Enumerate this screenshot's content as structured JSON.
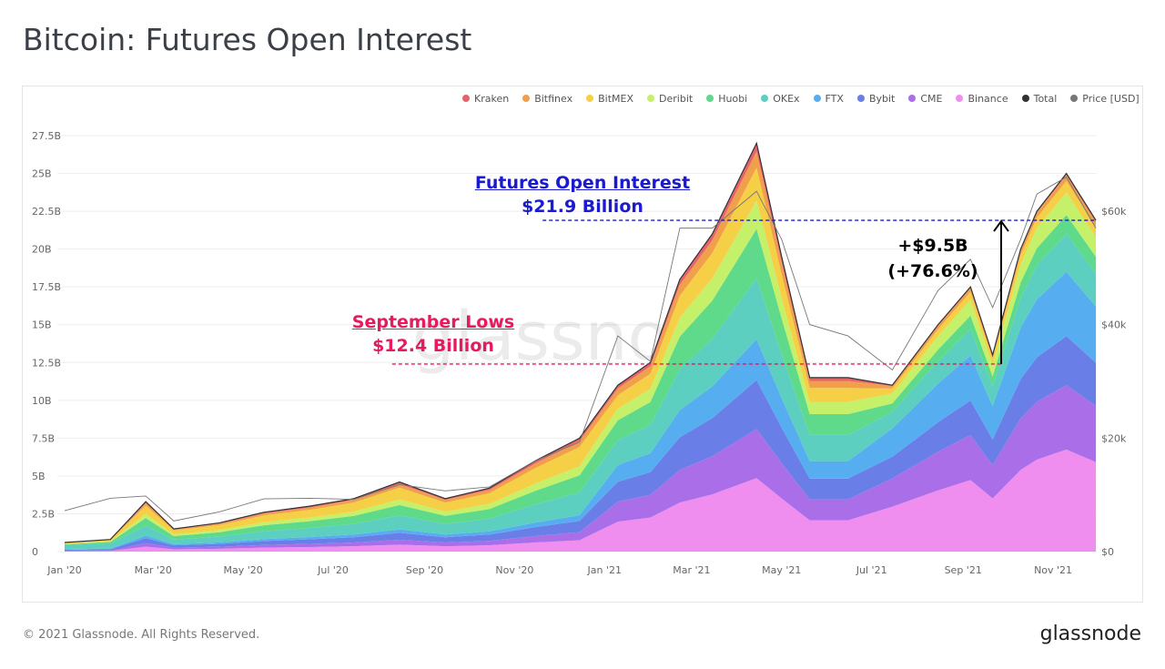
{
  "header": {
    "title": "Bitcoin: Futures Open Interest"
  },
  "footer": {
    "copyright": "© 2021 Glassnode. All Rights Reserved.",
    "logo": "glassnode",
    "watermark": "glassnode"
  },
  "annotations": {
    "current_title": "Futures Open Interest",
    "current_value": "$21.9 Billion",
    "current_color": "#1a1ad0",
    "lows_title": "September Lows",
    "lows_value": "$12.4 Billion",
    "lows_color": "#e8195e",
    "change_abs": "+$9.5B",
    "change_pct": "(+76.6%)"
  },
  "chart_data": {
    "type": "area",
    "stacked": true,
    "grid": true,
    "legend_position": "top-right",
    "y_ticks": [
      "0",
      "2.5B",
      "5B",
      "7.5B",
      "10B",
      "12.5B",
      "15B",
      "17.5B",
      "20B",
      "22.5B",
      "25B",
      "27.5B"
    ],
    "ylim": [
      0,
      27.5
    ],
    "y2_ticks": [
      "$0",
      "$20k",
      "$40k",
      "$60k"
    ],
    "y2lim": [
      0,
      73300
    ],
    "x_ticks": [
      "Jan '20",
      "Mar '20",
      "May '20",
      "Jul '20",
      "Sep '20",
      "Nov '20",
      "Jan '21",
      "Mar '21",
      "May '21",
      "Jul '21",
      "Sep '21",
      "Nov '21"
    ],
    "x_tick_dates": [
      "2020-01-01",
      "2020-03-01",
      "2020-05-01",
      "2020-07-01",
      "2020-09-01",
      "2020-11-01",
      "2021-01-01",
      "2021-03-01",
      "2021-05-01",
      "2021-07-01",
      "2021-09-01",
      "2021-11-01"
    ],
    "x": [
      "2020-01-01",
      "2020-02-01",
      "2020-02-25",
      "2020-03-15",
      "2020-04-15",
      "2020-05-15",
      "2020-06-15",
      "2020-07-15",
      "2020-08-15",
      "2020-09-15",
      "2020-10-15",
      "2020-11-15",
      "2020-12-15",
      "2021-01-10",
      "2021-02-01",
      "2021-02-21",
      "2021-03-15",
      "2021-04-14",
      "2021-05-01",
      "2021-05-20",
      "2021-06-15",
      "2021-07-15",
      "2021-08-15",
      "2021-09-06",
      "2021-09-21",
      "2021-10-10",
      "2021-10-21",
      "2021-11-10",
      "2021-11-30"
    ],
    "series": [
      {
        "name": "Binance",
        "color": "#f08ef0",
        "values": [
          0.03,
          0.04,
          0.33,
          0.15,
          0.19,
          0.26,
          0.3,
          0.35,
          0.46,
          0.35,
          0.42,
          0.6,
          0.75,
          1.98,
          2.25,
          3.24,
          3.78,
          4.86,
          3.51,
          2.07,
          2.07,
          2.97,
          4.05,
          4.73,
          3.51,
          5.4,
          6.08,
          6.75,
          5.91
        ]
      },
      {
        "name": "CME",
        "color": "#a96ee8",
        "values": [
          0.03,
          0.04,
          0.23,
          0.11,
          0.13,
          0.18,
          0.21,
          0.25,
          0.32,
          0.25,
          0.29,
          0.42,
          0.53,
          1.32,
          1.5,
          2.16,
          2.52,
          3.24,
          2.34,
          1.38,
          1.38,
          1.87,
          2.55,
          2.98,
          2.21,
          3.4,
          3.83,
          4.25,
          3.72
        ]
      },
      {
        "name": "Bybit",
        "color": "#6a7ee8",
        "values": [
          0.06,
          0.08,
          0.33,
          0.15,
          0.19,
          0.26,
          0.3,
          0.35,
          0.46,
          0.35,
          0.42,
          0.6,
          0.75,
          1.32,
          1.5,
          2.16,
          2.52,
          3.24,
          2.34,
          1.38,
          1.38,
          1.43,
          1.95,
          2.28,
          1.69,
          2.6,
          2.93,
          3.25,
          2.85
        ]
      },
      {
        "name": "FTX",
        "color": "#56aef0",
        "values": [
          0.03,
          0.04,
          0.17,
          0.08,
          0.1,
          0.13,
          0.15,
          0.18,
          0.23,
          0.18,
          0.21,
          0.3,
          0.38,
          1.1,
          1.25,
          1.8,
          2.1,
          2.7,
          1.95,
          1.15,
          1.15,
          1.87,
          2.55,
          2.98,
          2.21,
          3.4,
          3.83,
          4.25,
          3.72
        ]
      },
      {
        "name": "OKEx",
        "color": "#5ccfc0",
        "values": [
          0.27,
          0.36,
          0.66,
          0.3,
          0.38,
          0.52,
          0.6,
          0.7,
          0.92,
          0.7,
          0.84,
          1.2,
          1.5,
          1.65,
          1.88,
          2.7,
          3.15,
          4.05,
          2.93,
          1.73,
          1.73,
          1.1,
          1.5,
          1.75,
          1.3,
          2.0,
          2.25,
          2.5,
          2.19
        ]
      },
      {
        "name": "Huobi",
        "color": "#5fd98a",
        "values": [
          0.06,
          0.08,
          0.5,
          0.23,
          0.29,
          0.39,
          0.45,
          0.53,
          0.69,
          0.53,
          0.63,
          0.9,
          1.13,
          1.32,
          1.5,
          2.16,
          2.52,
          3.24,
          2.34,
          1.38,
          1.38,
          0.55,
          0.75,
          0.88,
          0.65,
          1.0,
          1.13,
          1.25,
          1.1
        ]
      },
      {
        "name": "Deribit",
        "color": "#c5f06a",
        "values": [
          0.03,
          0.04,
          0.26,
          0.12,
          0.15,
          0.21,
          0.24,
          0.28,
          0.37,
          0.28,
          0.34,
          0.48,
          0.6,
          0.77,
          0.88,
          1.26,
          1.47,
          1.89,
          1.37,
          0.81,
          0.81,
          0.66,
          0.9,
          1.05,
          0.78,
          1.2,
          1.35,
          1.5,
          1.31
        ]
      },
      {
        "name": "BitMEX",
        "color": "#f5d046",
        "values": [
          0.06,
          0.08,
          0.56,
          0.26,
          0.32,
          0.44,
          0.51,
          0.6,
          0.78,
          0.6,
          0.71,
          1.02,
          1.28,
          0.88,
          1.0,
          1.44,
          1.68,
          2.16,
          1.56,
          0.92,
          0.92,
          0.33,
          0.45,
          0.53,
          0.39,
          0.6,
          0.68,
          0.75,
          0.66
        ]
      },
      {
        "name": "Bitfinex",
        "color": "#f0a04b",
        "values": [
          0.02,
          0.02,
          0.17,
          0.08,
          0.1,
          0.13,
          0.15,
          0.18,
          0.23,
          0.18,
          0.21,
          0.3,
          0.38,
          0.44,
          0.5,
          0.72,
          0.84,
          1.08,
          0.78,
          0.46,
          0.46,
          0.17,
          0.23,
          0.26,
          0.2,
          0.3,
          0.34,
          0.38,
          0.33
        ]
      },
      {
        "name": "Kraken",
        "color": "#e5646c",
        "values": [
          0.01,
          0.02,
          0.1,
          0.05,
          0.06,
          0.08,
          0.09,
          0.11,
          0.14,
          0.11,
          0.13,
          0.18,
          0.23,
          0.22,
          0.25,
          0.36,
          0.42,
          0.54,
          0.39,
          0.23,
          0.23,
          0.06,
          0.08,
          0.09,
          0.07,
          0.1,
          0.11,
          0.13,
          0.11
        ]
      }
    ],
    "total": {
      "name": "Total",
      "color": "#333333",
      "values": [
        0.6,
        0.8,
        3.3,
        1.5,
        1.9,
        2.6,
        3.0,
        3.5,
        4.6,
        3.5,
        4.2,
        6.0,
        7.5,
        11.0,
        12.5,
        18.0,
        21.0,
        27.0,
        19.5,
        11.5,
        11.5,
        11.0,
        15.0,
        17.5,
        13.0,
        20.0,
        22.5,
        25.0,
        21.9
      ]
    },
    "price": {
      "name": "Price [USD]",
      "color": "#777777",
      "values": [
        7200,
        9400,
        9800,
        5400,
        7000,
        9300,
        9400,
        9200,
        11800,
        10700,
        11400,
        16000,
        19300,
        38000,
        33500,
        57000,
        57000,
        63500,
        55000,
        40000,
        38000,
        32000,
        46000,
        51500,
        43000,
        55000,
        63000,
        66000,
        57000
      ]
    },
    "reference_lines": [
      {
        "label": "Futures Open Interest $21.9 Billion",
        "value": 21.9,
        "from": "2020-11-20"
      },
      {
        "label": "September Lows $12.4 Billion",
        "value": 12.4,
        "from": "2020-08-10"
      }
    ],
    "legend": [
      "Kraken",
      "Bitfinex",
      "BitMEX",
      "Deribit",
      "Huobi",
      "OKEx",
      "FTX",
      "Bybit",
      "CME",
      "Binance",
      "Total",
      "Price [USD]"
    ]
  }
}
